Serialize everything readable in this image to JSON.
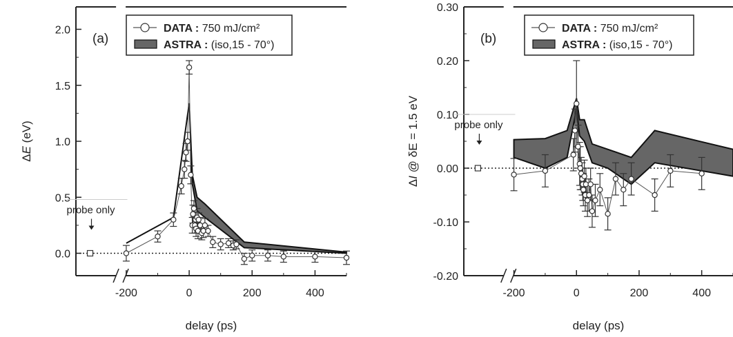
{
  "chart_data": [
    {
      "type": "line",
      "panel_label": "(a)",
      "xlabel": "delay (ps)",
      "ylabel_prefix": "Δ",
      "ylabel_var": "E",
      "ylabel_suffix": " (eV)",
      "xlim": [
        -360,
        500
      ],
      "ylim": [
        -0.2,
        2.2
      ],
      "x_ticks": [
        -200,
        0,
        200,
        400
      ],
      "y_ticks": [
        0.0,
        0.5,
        1.0,
        1.5,
        2.0
      ],
      "x_tick_labels": [
        "-200",
        "0",
        "200",
        "400"
      ],
      "y_tick_labels": [
        "0.0",
        "0.5",
        "1.0",
        "1.5",
        "2.0"
      ],
      "axis_break_x": -215,
      "legend": {
        "position": "top-right",
        "data_name": "DATA :",
        "data_desc": " 750 mJ/cm²",
        "model_name": "ASTRA :",
        "model_desc": " (iso,15 - 70°)"
      },
      "probe_note": "probe only",
      "probe_point": {
        "x": -315,
        "y": 0.0
      },
      "baseline": 0.0,
      "series": [
        {
          "name": "DATA : 750 mJ/cm²",
          "x": [
            -200,
            -100,
            -50,
            -25,
            -15,
            -10,
            -5,
            0,
            5,
            10,
            12,
            15,
            18,
            20,
            22,
            25,
            28,
            30,
            35,
            40,
            45,
            50,
            60,
            75,
            100,
            125,
            140,
            150,
            175,
            200,
            250,
            300,
            400,
            500
          ],
          "y": [
            0.0,
            0.15,
            0.3,
            0.6,
            0.75,
            0.9,
            1.0,
            1.66,
            0.7,
            0.25,
            0.35,
            0.4,
            0.25,
            0.3,
            0.22,
            0.32,
            0.2,
            0.3,
            0.25,
            0.18,
            0.2,
            0.25,
            0.2,
            0.1,
            0.08,
            0.09,
            0.07,
            0.08,
            -0.05,
            -0.02,
            -0.02,
            -0.03,
            -0.03,
            -0.04
          ],
          "yerr": [
            0.07,
            0.05,
            0.06,
            0.07,
            0.08,
            0.08,
            0.08,
            0.06,
            0.08,
            0.07,
            0.08,
            0.07,
            0.07,
            0.07,
            0.07,
            0.08,
            0.07,
            0.06,
            0.07,
            0.06,
            0.06,
            0.06,
            0.05,
            0.05,
            0.05,
            0.04,
            0.04,
            0.04,
            0.05,
            0.05,
            0.05,
            0.05,
            0.05,
            0.06
          ]
        },
        {
          "name": "ASTRA : (iso,15 - 70°)",
          "band_x": [
            -200,
            -50,
            0,
            10,
            25,
            50,
            175,
            500
          ],
          "band_upper": [
            0.09,
            0.32,
            1.34,
            0.7,
            0.5,
            0.44,
            0.1,
            0.01
          ],
          "band_lower": [
            0.09,
            0.32,
            1.34,
            0.62,
            0.38,
            0.32,
            0.05,
            0.0
          ]
        }
      ]
    },
    {
      "type": "line",
      "panel_label": "(b)",
      "xlabel": "delay (ps)",
      "ylabel_prefix": "Δ",
      "ylabel_var": "I",
      "ylabel_suffix": " @ δE = 1.5 eV",
      "xlim": [
        -360,
        500
      ],
      "ylim": [
        -0.2,
        0.3
      ],
      "x_ticks": [
        -200,
        0,
        200,
        400
      ],
      "y_ticks": [
        -0.2,
        -0.1,
        0.0,
        0.1,
        0.2,
        0.3
      ],
      "x_tick_labels": [
        "-200",
        "0",
        "200",
        "400"
      ],
      "y_tick_labels": [
        "-0.20",
        "-0.10",
        "0.00",
        "0.10",
        "0.20",
        "0.30"
      ],
      "axis_break_x": -215,
      "legend": {
        "position": "top-right",
        "data_name": "DATA :",
        "data_desc": " 750 mJ/cm²",
        "model_name": "ASTRA :",
        "model_desc": " (iso,15 - 70°)"
      },
      "probe_note": "probe only",
      "probe_point": {
        "x": -315,
        "y": 0.0
      },
      "baseline": 0.0,
      "series": [
        {
          "name": "DATA : 750 mJ/cm²",
          "x": [
            -200,
            -100,
            -10,
            -5,
            0,
            5,
            10,
            12,
            15,
            18,
            20,
            22,
            25,
            28,
            30,
            35,
            40,
            45,
            50,
            60,
            75,
            100,
            125,
            150,
            175,
            250,
            300,
            400
          ],
          "y": [
            -0.012,
            -0.005,
            0.025,
            0.07,
            0.12,
            0.04,
            0.008,
            0.0,
            -0.01,
            -0.02,
            -0.03,
            -0.04,
            -0.015,
            -0.05,
            -0.03,
            -0.06,
            -0.05,
            -0.03,
            -0.08,
            -0.06,
            -0.04,
            -0.085,
            -0.02,
            -0.04,
            -0.02,
            -0.05,
            -0.005,
            -0.01
          ],
          "yerr": [
            0.03,
            0.03,
            0.03,
            0.04,
            0.08,
            0.04,
            0.04,
            0.04,
            0.03,
            0.03,
            0.03,
            0.03,
            0.03,
            0.03,
            0.03,
            0.03,
            0.03,
            0.03,
            0.03,
            0.03,
            0.03,
            0.03,
            0.03,
            0.03,
            0.03,
            0.03,
            0.03,
            0.03
          ]
        },
        {
          "name": "ASTRA : (iso,15 - 70°)",
          "band_x": [
            -200,
            -100,
            -30,
            0,
            10,
            25,
            50,
            100,
            175,
            250,
            500
          ],
          "band_upper": [
            0.053,
            0.055,
            0.07,
            0.13,
            0.09,
            0.09,
            0.045,
            0.035,
            0.02,
            0.07,
            0.035
          ],
          "band_lower": [
            0.02,
            0.0,
            0.02,
            0.11,
            0.06,
            0.05,
            0.01,
            0.0,
            -0.03,
            0.01,
            -0.015
          ]
        }
      ]
    }
  ]
}
